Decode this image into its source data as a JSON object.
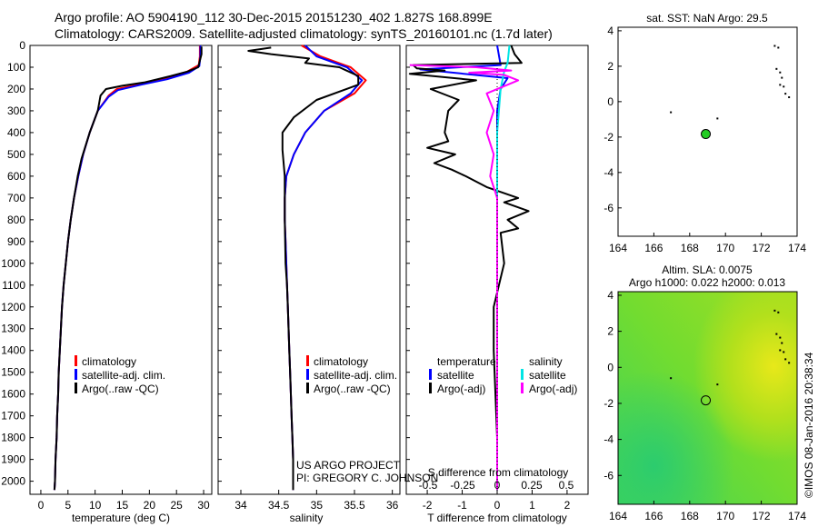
{
  "header": {
    "line1": "Argo profile: AO 5904190_112 30-Dec-2015 20151230_402 1.827S 168.899E",
    "line2": "Climatology: CARS2009. Satellite-adjusted climatology: synTS_20160101.nc (1.7d later)"
  },
  "colors": {
    "climatology": "#ff0000",
    "satellite": "#0000ff",
    "argo": "#000000",
    "salinity_satellite": "#00e5e5",
    "salinity_argo": "#ff00ff",
    "float_marker": "#22cc22"
  },
  "chart_data": [
    {
      "id": "temperature",
      "type": "line",
      "xlabel": "temperature (deg C)",
      "ylabel": "",
      "xlim": [
        -2,
        31.5
      ],
      "ylim": [
        2060,
        0
      ],
      "xticks": [
        "0",
        "5",
        "10",
        "15",
        "20",
        "25",
        "30"
      ],
      "yticks": [
        "0",
        "100",
        "200",
        "300",
        "400",
        "500",
        "600",
        "700",
        "800",
        "900",
        "1000",
        "1100",
        "1200",
        "1300",
        "1400",
        "1500",
        "1600",
        "1700",
        "1800",
        "1900",
        "2000"
      ],
      "legend": [
        "climatology",
        "satellite-adj. clim.",
        "Argo(..raw -QC)"
      ],
      "series": [
        {
          "name": "climatology",
          "color": "#ff0000",
          "points": [
            [
              29.3,
              0
            ],
            [
              29.3,
              50
            ],
            [
              29.1,
              90
            ],
            [
              27,
              120
            ],
            [
              23,
              150
            ],
            [
              18,
              180
            ],
            [
              14,
              200
            ],
            [
              12.5,
              230
            ],
            [
              10.5,
              300
            ],
            [
              9,
              400
            ],
            [
              7.8,
              500
            ],
            [
              6.9,
              600
            ],
            [
              6.1,
              700
            ],
            [
              5.5,
              800
            ],
            [
              5,
              900
            ],
            [
              4.6,
              1000
            ],
            [
              4.2,
              1100
            ],
            [
              3.9,
              1200
            ],
            [
              3.7,
              1300
            ],
            [
              3.5,
              1400
            ],
            [
              3.3,
              1500
            ],
            [
              3.2,
              1600
            ],
            [
              3,
              1700
            ],
            [
              2.9,
              1800
            ],
            [
              2.7,
              1900
            ],
            [
              2.6,
              2000
            ],
            [
              2.5,
              2040
            ]
          ]
        },
        {
          "name": "satellite-adj. clim.",
          "color": "#0000ff",
          "points": [
            [
              29.4,
              0
            ],
            [
              29.4,
              50
            ],
            [
              29.2,
              95
            ],
            [
              27.3,
              125
            ],
            [
              23.3,
              155
            ],
            [
              18.5,
              180
            ],
            [
              14.2,
              205
            ],
            [
              12.5,
              235
            ],
            [
              10.5,
              300
            ],
            [
              9,
              400
            ],
            [
              7.8,
              500
            ],
            [
              6.9,
              600
            ],
            [
              6.1,
              700
            ],
            [
              5.5,
              800
            ],
            [
              5,
              900
            ],
            [
              4.6,
              1000
            ],
            [
              4.2,
              1100
            ],
            [
              3.9,
              1200
            ],
            [
              3.7,
              1300
            ],
            [
              3.5,
              1400
            ],
            [
              3.3,
              1500
            ],
            [
              3.2,
              1600
            ],
            [
              3,
              1700
            ],
            [
              2.9,
              1800
            ],
            [
              2.7,
              1900
            ],
            [
              2.6,
              2000
            ],
            [
              2.5,
              2040
            ]
          ]
        },
        {
          "name": "Argo(..raw -QC)",
          "color": "#000000",
          "points": [
            [
              29.6,
              5
            ],
            [
              29.6,
              40
            ],
            [
              29.3,
              70
            ],
            [
              29,
              100
            ],
            [
              27,
              120
            ],
            [
              24,
              140
            ],
            [
              19,
              170
            ],
            [
              15,
              185
            ],
            [
              12,
              200
            ],
            [
              11,
              230
            ],
            [
              10.5,
              300
            ],
            [
              9,
              400
            ],
            [
              7.5,
              520
            ],
            [
              6.8,
              600
            ],
            [
              6.1,
              700
            ],
            [
              5.5,
              800
            ],
            [
              5,
              900
            ],
            [
              4.6,
              1000
            ],
            [
              4.2,
              1100
            ],
            [
              3.9,
              1200
            ],
            [
              3.7,
              1300
            ],
            [
              3.5,
              1400
            ],
            [
              3.3,
              1500
            ],
            [
              3.2,
              1600
            ],
            [
              3,
              1700
            ],
            [
              2.9,
              1800
            ],
            [
              2.7,
              1900
            ],
            [
              2.6,
              2000
            ],
            [
              2.5,
              2040
            ]
          ]
        }
      ]
    },
    {
      "id": "salinity",
      "type": "line",
      "xlabel": "salinity",
      "ylabel": "",
      "xlim": [
        33.7,
        36.1
      ],
      "ylim": [
        2060,
        0
      ],
      "xticks": [
        "34",
        "34.5",
        "35",
        "35.5",
        "36"
      ],
      "legend": [
        "climatology",
        "satellite-adj. clim.",
        "Argo(..raw -QC)"
      ],
      "annotation": [
        "US ARGO PROJECT",
        "PI: GREGORY C. JOHNSON"
      ],
      "series": [
        {
          "name": "climatology",
          "color": "#ff0000",
          "points": [
            [
              34.8,
              0
            ],
            [
              35.05,
              50
            ],
            [
              35.45,
              100
            ],
            [
              35.65,
              160
            ],
            [
              35.5,
              220
            ],
            [
              35.1,
              300
            ],
            [
              34.85,
              400
            ],
            [
              34.7,
              500
            ],
            [
              34.6,
              600
            ],
            [
              34.58,
              700
            ],
            [
              34.58,
              800
            ],
            [
              34.59,
              900
            ],
            [
              34.6,
              1000
            ],
            [
              34.61,
              1100
            ],
            [
              34.62,
              1200
            ],
            [
              34.63,
              1300
            ],
            [
              34.64,
              1400
            ],
            [
              34.65,
              1500
            ],
            [
              34.66,
              1600
            ],
            [
              34.67,
              1700
            ],
            [
              34.68,
              1800
            ],
            [
              34.69,
              1900
            ],
            [
              34.69,
              2000
            ],
            [
              34.69,
              2040
            ]
          ]
        },
        {
          "name": "satellite-adj. clim.",
          "color": "#0000ff",
          "points": [
            [
              34.85,
              0
            ],
            [
              35.0,
              50
            ],
            [
              35.4,
              100
            ],
            [
              35.6,
              160
            ],
            [
              35.45,
              220
            ],
            [
              35.1,
              300
            ],
            [
              34.85,
              400
            ],
            [
              34.7,
              500
            ],
            [
              34.6,
              600
            ],
            [
              34.58,
              700
            ],
            [
              34.58,
              800
            ],
            [
              34.59,
              900
            ],
            [
              34.6,
              1000
            ],
            [
              34.61,
              1100
            ],
            [
              34.62,
              1200
            ],
            [
              34.63,
              1300
            ],
            [
              34.64,
              1400
            ],
            [
              34.65,
              1500
            ],
            [
              34.66,
              1600
            ],
            [
              34.67,
              1700
            ],
            [
              34.68,
              1800
            ],
            [
              34.69,
              1900
            ],
            [
              34.69,
              2000
            ],
            [
              34.69,
              2040
            ]
          ]
        },
        {
          "name": "Argo(..raw -QC)",
          "color": "#000000",
          "points": [
            [
              34.4,
              10
            ],
            [
              34.1,
              25
            ],
            [
              34.4,
              40
            ],
            [
              34.9,
              60
            ],
            [
              34.85,
              80
            ],
            [
              35.3,
              100
            ],
            [
              35.55,
              140
            ],
            [
              35.55,
              180
            ],
            [
              35.0,
              250
            ],
            [
              34.7,
              330
            ],
            [
              34.55,
              400
            ],
            [
              34.55,
              480
            ],
            [
              34.58,
              600
            ],
            [
              34.58,
              800
            ],
            [
              34.59,
              1000
            ],
            [
              34.61,
              1100
            ],
            [
              34.62,
              1200
            ],
            [
              34.63,
              1300
            ],
            [
              34.64,
              1400
            ],
            [
              34.65,
              1500
            ],
            [
              34.66,
              1600
            ],
            [
              34.67,
              1700
            ],
            [
              34.68,
              1800
            ],
            [
              34.69,
              1900
            ],
            [
              34.69,
              2000
            ],
            [
              34.69,
              2040
            ]
          ]
        }
      ]
    },
    {
      "id": "differences",
      "type": "line",
      "xlabel": "T difference from climatology",
      "x2label": "S difference from climatology",
      "xlim": [
        -2.6,
        2.6
      ],
      "ylim": [
        2060,
        0
      ],
      "xticks": [
        "-2",
        "-1",
        "0",
        "1",
        "2"
      ],
      "x2ticks": [
        "-0.5",
        "-0.25",
        "0",
        "0.25",
        "0.5"
      ],
      "legend_headers": [
        "temperature",
        "salinity"
      ],
      "legend": [
        "satellite",
        "Argo(-adj)",
        "satellite",
        "Argo(-adj)"
      ],
      "series": [
        {
          "name": "temperature satellite",
          "color": "#0000ff",
          "points": [
            [
              0,
              0
            ],
            [
              0.1,
              90
            ],
            [
              -2.2,
              110
            ],
            [
              0.3,
              150
            ],
            [
              0.1,
              200
            ],
            [
              0,
              300
            ],
            [
              0,
              2040
            ]
          ]
        },
        {
          "name": "temperature Argo(-adj)",
          "color": "#000000",
          "points": [
            [
              0.4,
              0
            ],
            [
              0.5,
              40
            ],
            [
              0.7,
              80
            ],
            [
              -2.4,
              90
            ],
            [
              -2.3,
              105
            ],
            [
              -1.5,
              115
            ],
            [
              -2.5,
              130
            ],
            [
              -0.6,
              160
            ],
            [
              -1.9,
              200
            ],
            [
              -1.1,
              250
            ],
            [
              -1.4,
              300
            ],
            [
              -1.5,
              400
            ],
            [
              -1.4,
              440
            ],
            [
              -2.0,
              470
            ],
            [
              -1.2,
              500
            ],
            [
              -1.8,
              540
            ],
            [
              -1.3,
              570
            ],
            [
              -0.9,
              600
            ],
            [
              -0.3,
              650
            ],
            [
              0.6,
              700
            ],
            [
              0.2,
              720
            ],
            [
              0.9,
              760
            ],
            [
              0.3,
              800
            ],
            [
              0.6,
              840
            ],
            [
              0.1,
              860
            ],
            [
              0.2,
              1000
            ],
            [
              -0.1,
              1200
            ],
            [
              -0.1,
              1400
            ],
            [
              0,
              1800
            ],
            [
              0,
              2040
            ]
          ]
        },
        {
          "name": "salinity satellite",
          "color": "#00e5e5",
          "points": [
            [
              0.35,
              0
            ],
            [
              0.3,
              80
            ],
            [
              0.2,
              120
            ],
            [
              0.1,
              200
            ],
            [
              0.05,
              300
            ],
            [
              0,
              400
            ],
            [
              0,
              2040
            ]
          ]
        },
        {
          "name": "salinity Argo(-adj)",
          "color": "#ff00ff",
          "points": [
            [
              -2.5,
              90
            ],
            [
              -0.6,
              100
            ],
            [
              0.4,
              115
            ],
            [
              -0.8,
              125
            ],
            [
              0.2,
              135
            ],
            [
              0.6,
              160
            ],
            [
              -0.3,
              220
            ],
            [
              -0.1,
              300
            ],
            [
              -0.3,
              400
            ],
            [
              -0.1,
              500
            ],
            [
              -0.2,
              600
            ],
            [
              0,
              700
            ],
            [
              0,
              2040
            ]
          ]
        }
      ]
    },
    {
      "id": "sst-map",
      "type": "scatter",
      "title": "sat. SST: NaN Argo: 29.5",
      "xlim": [
        164,
        174
      ],
      "ylim": [
        -7.6,
        4.2
      ],
      "xticks": [
        "164",
        "166",
        "168",
        "170",
        "172",
        "174"
      ],
      "yticks": [
        "4",
        "2",
        "0",
        "-2",
        "-4",
        "-6"
      ],
      "float_position": [
        168.9,
        -1.83
      ]
    },
    {
      "id": "sla-map",
      "type": "heatmap",
      "title": "Altim. SLA: 0.0075",
      "subtitle": "Argo h1000: 0.022 h2000: 0.013",
      "xlim": [
        164,
        174
      ],
      "ylim": [
        -7.6,
        4.2
      ],
      "xticks": [
        "164",
        "166",
        "168",
        "170",
        "172",
        "174"
      ],
      "yticks": [
        "4",
        "2",
        "0",
        "-2",
        "-4",
        "-6"
      ],
      "float_position": [
        168.9,
        -1.83
      ],
      "side_label": "©IMOS 08-Jan-2016 20:38:34"
    }
  ]
}
